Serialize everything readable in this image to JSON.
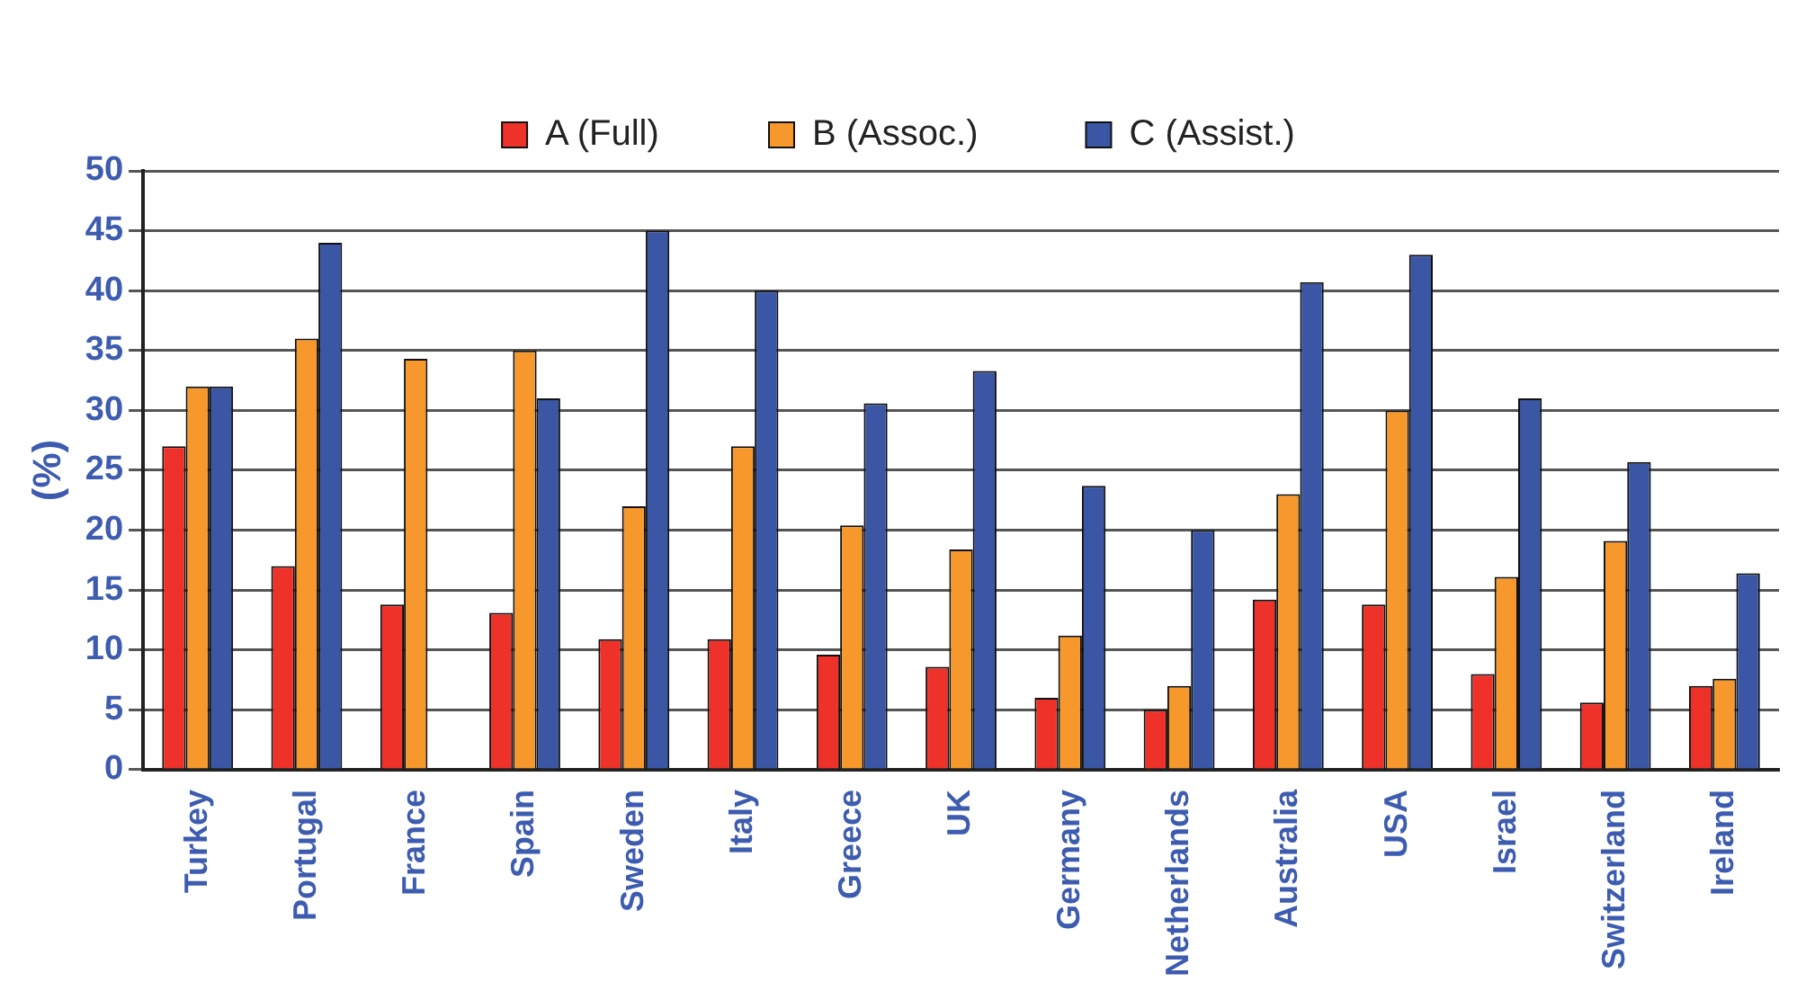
{
  "chart_data": {
    "type": "bar",
    "ylabel": "(%)",
    "categories": [
      "Turkey",
      "Portugal",
      "France",
      "Spain",
      "Sweden",
      "Italy",
      "Greece",
      "UK",
      "Germany",
      "Netherlands",
      "Australia",
      "USA",
      "Israel",
      "Switzerland",
      "Ireland"
    ],
    "series": [
      {
        "name": "A (Full)",
        "color": "#ee3129",
        "values": [
          27,
          17,
          13.8,
          13.1,
          10.9,
          10.9,
          9.6,
          8.6,
          6,
          5,
          14.2,
          13.8,
          8,
          5.6,
          7
        ]
      },
      {
        "name": "B (Assoc.)",
        "color": "#f7982d",
        "values": [
          32,
          36,
          34.3,
          35,
          22,
          27,
          20.4,
          18.4,
          11.2,
          7,
          23,
          30,
          16.1,
          19.1,
          7.6
        ]
      },
      {
        "name": "C (Assist.)",
        "color": "#3a56a4",
        "values": [
          32,
          44,
          null,
          31,
          45,
          40,
          30.6,
          33.3,
          23.7,
          20,
          40.7,
          43,
          31,
          25.7,
          16.4
        ]
      }
    ],
    "ylim": [
      0,
      50
    ],
    "yticks": [
      0,
      5,
      10,
      15,
      20,
      25,
      30,
      35,
      40,
      45,
      50
    ],
    "grid": "y",
    "legend": "top"
  }
}
